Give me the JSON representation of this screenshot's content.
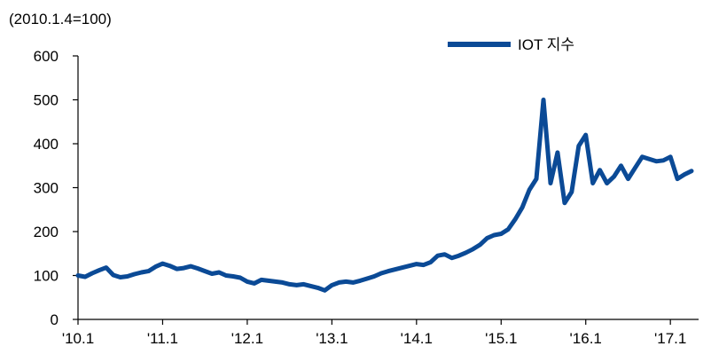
{
  "chart_data": {
    "type": "line",
    "unit_label": "(2010.1.4=100)",
    "ylim": [
      0,
      600
    ],
    "yticks": [
      0,
      100,
      200,
      300,
      400,
      500,
      600
    ],
    "x_tick_labels": [
      "'10.1",
      "'11.1",
      "'12.1",
      "'13.1",
      "'14.1",
      "'15.1",
      "'16.1",
      "'17.1"
    ],
    "grid": false,
    "legend_position": "top-right",
    "series": [
      {
        "name": "IOT 지수",
        "color": "#0b4a96",
        "x": [
          "2010-01",
          "2010-02",
          "2010-03",
          "2010-04",
          "2010-05",
          "2010-06",
          "2010-07",
          "2010-08",
          "2010-09",
          "2010-10",
          "2010-11",
          "2010-12",
          "2011-01",
          "2011-02",
          "2011-03",
          "2011-04",
          "2011-05",
          "2011-06",
          "2011-07",
          "2011-08",
          "2011-09",
          "2011-10",
          "2011-11",
          "2011-12",
          "2012-01",
          "2012-02",
          "2012-03",
          "2012-04",
          "2012-05",
          "2012-06",
          "2012-07",
          "2012-08",
          "2012-09",
          "2012-10",
          "2012-11",
          "2012-12",
          "2013-01",
          "2013-02",
          "2013-03",
          "2013-04",
          "2013-05",
          "2013-06",
          "2013-07",
          "2013-08",
          "2013-09",
          "2013-10",
          "2013-11",
          "2013-12",
          "2014-01",
          "2014-02",
          "2014-03",
          "2014-04",
          "2014-05",
          "2014-06",
          "2014-07",
          "2014-08",
          "2014-09",
          "2014-10",
          "2014-11",
          "2014-12",
          "2015-01",
          "2015-02",
          "2015-03",
          "2015-04",
          "2015-05",
          "2015-06",
          "2015-07",
          "2015-08",
          "2015-09",
          "2015-10",
          "2015-11",
          "2015-12",
          "2016-01",
          "2016-02",
          "2016-03",
          "2016-04",
          "2016-05",
          "2016-06",
          "2016-07",
          "2016-08",
          "2016-09",
          "2016-10",
          "2016-11",
          "2016-12",
          "2017-01",
          "2017-02",
          "2017-03",
          "2017-04"
        ],
        "values": [
          100,
          97,
          105,
          112,
          118,
          101,
          96,
          98,
          103,
          107,
          110,
          120,
          127,
          122,
          115,
          117,
          121,
          116,
          110,
          104,
          107,
          100,
          98,
          95,
          86,
          82,
          90,
          88,
          86,
          84,
          80,
          78,
          80,
          76,
          72,
          66,
          78,
          84,
          86,
          84,
          88,
          93,
          98,
          105,
          110,
          114,
          118,
          122,
          126,
          124,
          130,
          145,
          148,
          140,
          145,
          152,
          160,
          170,
          185,
          192,
          195,
          205,
          228,
          255,
          295,
          320,
          500,
          310,
          380,
          265,
          290,
          395,
          420,
          310,
          340,
          310,
          325,
          350,
          320,
          345,
          370,
          365,
          360,
          362,
          370,
          320,
          330,
          338
        ]
      }
    ]
  }
}
